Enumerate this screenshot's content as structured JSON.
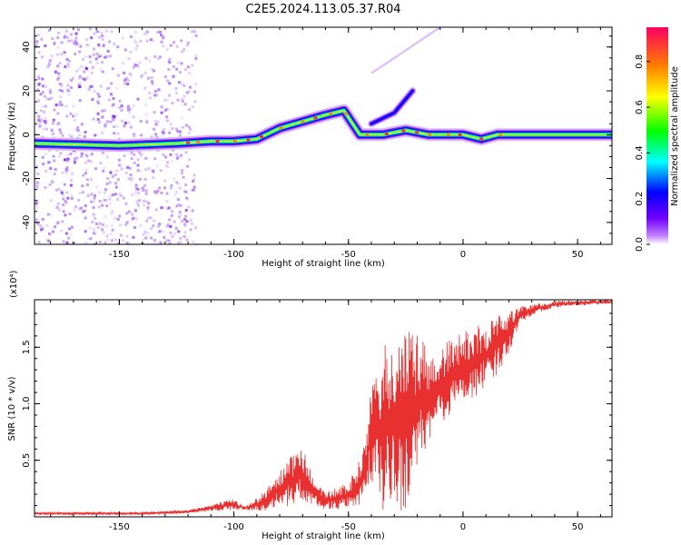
{
  "figure": {
    "title": "C2E5.2024.113.05.37.R04"
  },
  "chart_data": [
    {
      "type": "heatmap",
      "xlabel": "Height of straight line (km)",
      "ylabel": "Frequency (Hz)",
      "xlim": [
        -187,
        65
      ],
      "ylim": [
        -50,
        49
      ],
      "x_ticks": [
        -150,
        -100,
        -50,
        0,
        50
      ],
      "y_ticks": [
        -40,
        -20,
        0,
        20,
        40
      ],
      "colorbar": {
        "label": "Normalized spectral amplitude",
        "range": [
          0,
          0.95
        ],
        "ticks": [
          0.0,
          0.2,
          0.4,
          0.6,
          0.8
        ],
        "colormap": [
          "#ffffff",
          "#8000ff",
          "#0000ff",
          "#00ffff",
          "#00ff00",
          "#ffff00",
          "#ff8000",
          "#ff0060"
        ]
      },
      "ridge": {
        "description_points": [
          [
            -187,
            -4
          ],
          [
            -150,
            -5
          ],
          [
            -125,
            -4
          ],
          [
            -110,
            -3
          ],
          [
            -100,
            -3
          ],
          [
            -90,
            -2
          ],
          [
            -80,
            3
          ],
          [
            -70,
            6
          ],
          [
            -60,
            9
          ],
          [
            -52,
            11
          ],
          [
            -45,
            0
          ],
          [
            -35,
            0
          ],
          [
            -25,
            2
          ],
          [
            -15,
            0
          ],
          [
            0,
            0
          ],
          [
            8,
            -2
          ],
          [
            15,
            0
          ],
          [
            30,
            0
          ],
          [
            50,
            0
          ],
          [
            65,
            0
          ]
        ],
        "branch_points": [
          [
            -40,
            5
          ],
          [
            -30,
            10
          ],
          [
            -22,
            20
          ]
        ]
      },
      "grid": false
    },
    {
      "type": "line",
      "xlabel": "Height of straight line (km)",
      "ylabel": "SNR (10 * v/v)",
      "y_multiplier": "(x10⁴)",
      "xlim": [
        -187,
        65
      ],
      "ylim": [
        0,
        1.92
      ],
      "x_ticks": [
        -150,
        -100,
        -50,
        0,
        50
      ],
      "y_ticks": [
        0.5,
        1.0,
        1.5
      ],
      "series": [
        {
          "color": "#e83030",
          "envelope": [
            [
              -187,
              0.02,
              0.04
            ],
            [
              -140,
              0.02,
              0.04
            ],
            [
              -120,
              0.03,
              0.06
            ],
            [
              -108,
              0.05,
              0.12
            ],
            [
              -100,
              0.06,
              0.16
            ],
            [
              -95,
              0.06,
              0.09
            ],
            [
              -88,
              0.05,
              0.2
            ],
            [
              -80,
              0.08,
              0.4
            ],
            [
              -75,
              0.1,
              0.55
            ],
            [
              -70,
              0.12,
              0.62
            ],
            [
              -66,
              0.1,
              0.38
            ],
            [
              -60,
              0.06,
              0.22
            ],
            [
              -50,
              0.07,
              0.3
            ],
            [
              -44,
              0.1,
              0.55
            ],
            [
              -40,
              0.3,
              1.15
            ],
            [
              -35,
              0.05,
              1.5
            ],
            [
              -30,
              0.02,
              1.62
            ],
            [
              -25,
              0.05,
              1.65
            ],
            [
              -18,
              0.45,
              1.6
            ],
            [
              -12,
              0.78,
              1.4
            ],
            [
              -5,
              0.9,
              1.6
            ],
            [
              0,
              1.0,
              1.62
            ],
            [
              5,
              1.05,
              1.72
            ],
            [
              10,
              1.15,
              1.68
            ],
            [
              15,
              1.25,
              1.82
            ],
            [
              20,
              1.45,
              1.82
            ],
            [
              25,
              1.72,
              1.86
            ],
            [
              30,
              1.78,
              1.88
            ],
            [
              40,
              1.85,
              1.91
            ],
            [
              50,
              1.87,
              1.92
            ],
            [
              65,
              1.88,
              1.92
            ]
          ]
        }
      ],
      "grid": false
    }
  ]
}
